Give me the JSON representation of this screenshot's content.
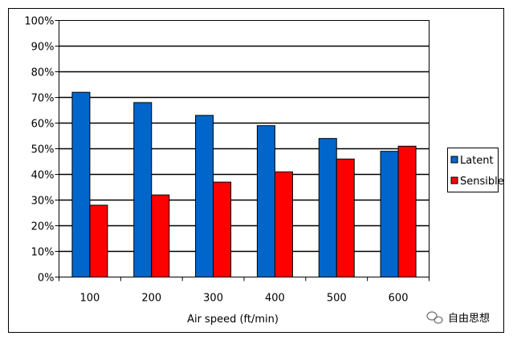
{
  "chart_data": {
    "type": "bar",
    "title": "",
    "xlabel": "Air speed (ft/min)",
    "ylabel": "",
    "categories": [
      "100",
      "200",
      "300",
      "400",
      "500",
      "600"
    ],
    "y_tick_labels": [
      "0%",
      "10%",
      "20%",
      "30%",
      "40%",
      "50%",
      "60%",
      "70%",
      "80%",
      "90%",
      "100%"
    ],
    "ylim": [
      0,
      100
    ],
    "y_unit": "percent",
    "grid": true,
    "legend_position": "right",
    "series": [
      {
        "name": "Latent",
        "values": [
          72,
          68,
          63,
          59,
          54,
          49
        ],
        "color": "#0066cc"
      },
      {
        "name": "Sensible",
        "values": [
          28,
          32,
          37,
          41,
          46,
          51
        ],
        "color": "#ff0000"
      }
    ]
  },
  "watermark": {
    "text": "自由思想",
    "icon": "wechat-like-icon"
  }
}
